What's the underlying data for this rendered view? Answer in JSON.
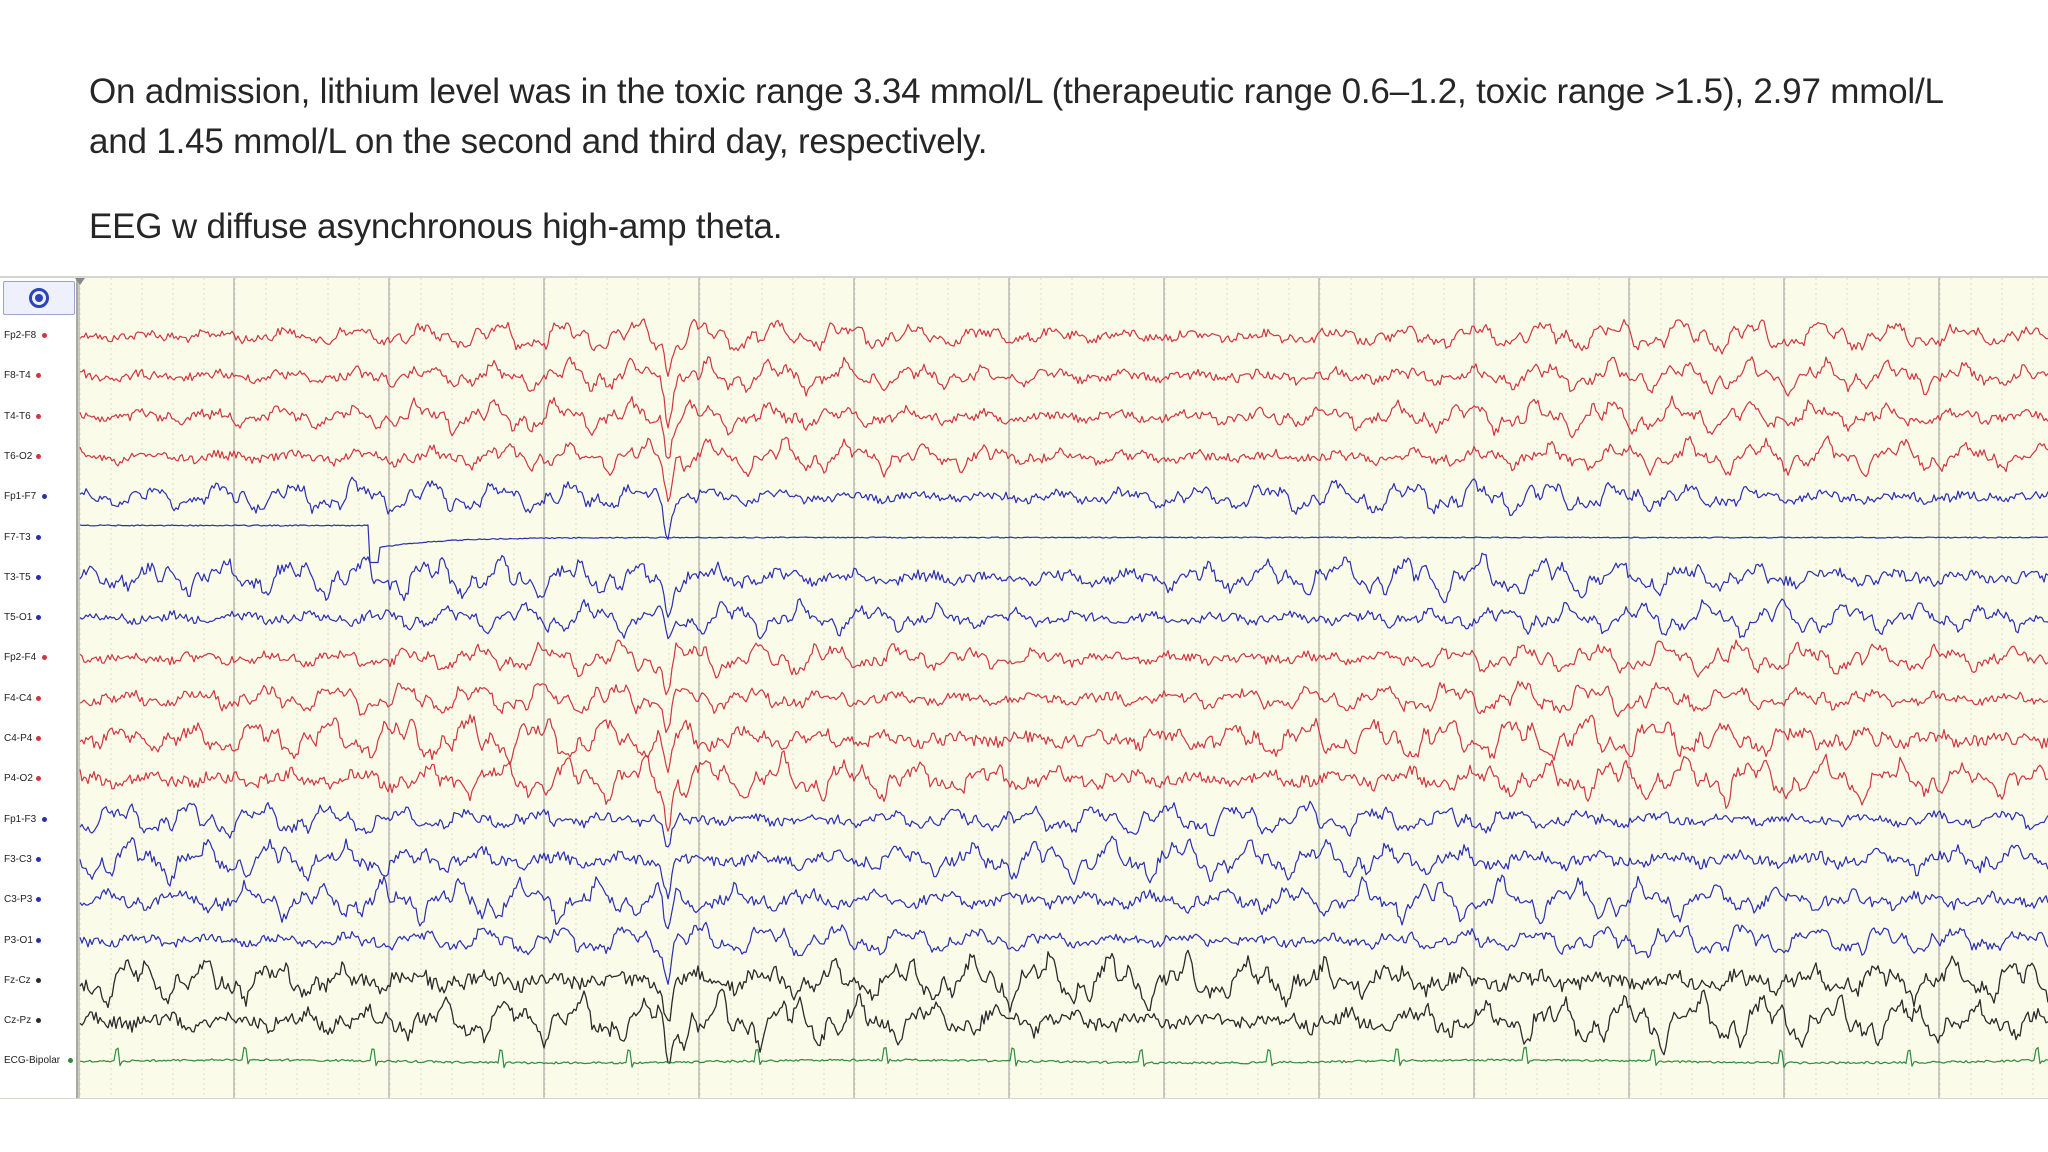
{
  "text": {
    "paragraph_1": "On admission, lithium level was in the toxic range 3.34 mmol/L (therapeutic range 0.6–1.2, toxic range >1.5), 2.97 mmol/L and 1.45 mmol/L on the second and third day, respectively.",
    "paragraph_2": "EEG w diffuse asynchronous high-amp theta."
  },
  "eeg": {
    "record_icon": "record-target-icon",
    "colors": {
      "right_hemisphere": "#d0363f",
      "left_hemisphere": "#2a2fb0",
      "midline": "#2b2b2b",
      "ecg": "#2f8a3f",
      "background": "#fbfbea",
      "grid_major": "#b9b9b2",
      "grid_minor": "#dcdcd2"
    },
    "channels": [
      {
        "label": "Fp2-F8",
        "group": "right"
      },
      {
        "label": "F8-T4",
        "group": "right"
      },
      {
        "label": "T4-T6",
        "group": "right"
      },
      {
        "label": "T6-O2",
        "group": "right"
      },
      {
        "label": "Fp1-F7",
        "group": "left"
      },
      {
        "label": "F7-T3",
        "group": "left",
        "flat": true
      },
      {
        "label": "T3-T5",
        "group": "left"
      },
      {
        "label": "T5-O1",
        "group": "left"
      },
      {
        "label": "Fp2-F4",
        "group": "right"
      },
      {
        "label": "F4-C4",
        "group": "right"
      },
      {
        "label": "C4-P4",
        "group": "right"
      },
      {
        "label": "P4-O2",
        "group": "right"
      },
      {
        "label": "Fp1-F3",
        "group": "left"
      },
      {
        "label": "F3-C3",
        "group": "left"
      },
      {
        "label": "C3-P3",
        "group": "left"
      },
      {
        "label": "P3-O1",
        "group": "left"
      },
      {
        "label": "Fz-Cz",
        "group": "mid"
      },
      {
        "label": "Cz-Pz",
        "group": "mid"
      },
      {
        "label": "ECG-Bipolar",
        "group": "ecg"
      }
    ]
  }
}
